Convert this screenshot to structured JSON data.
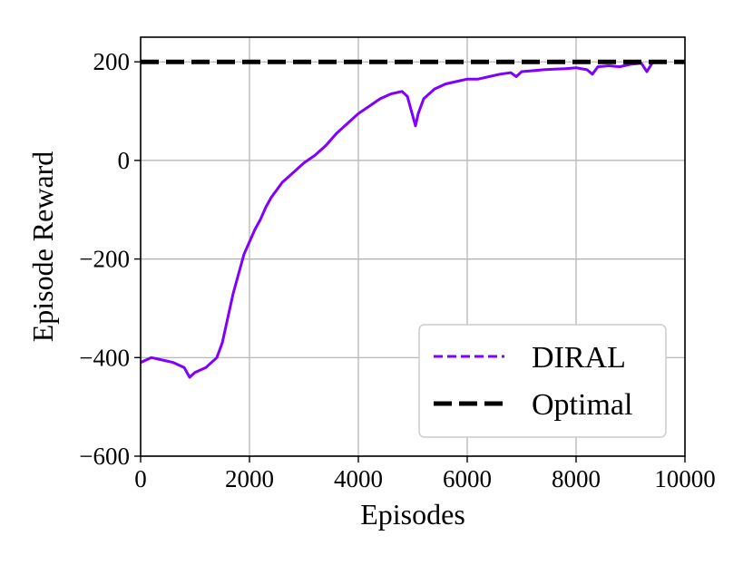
{
  "chart_data": {
    "type": "line",
    "xlabel": "Episodes",
    "ylabel": "Episode Reward",
    "xlim": [
      0,
      10000
    ],
    "ylim": [
      -600,
      250
    ],
    "x_ticks": [
      0,
      2000,
      4000,
      6000,
      8000,
      10000
    ],
    "y_ticks": [
      -600,
      -400,
      -200,
      0,
      200
    ],
    "x_tick_labels": [
      "0",
      "2000",
      "4000",
      "6000",
      "8000",
      "10000"
    ],
    "y_tick_labels": [
      "−600",
      "−400",
      "−200",
      "0",
      "200"
    ],
    "grid": true,
    "legend_position": "lower right",
    "series": [
      {
        "name": "DIRAL",
        "color": "#7f00ff",
        "style": "solid",
        "x": [
          0,
          200,
          400,
          600,
          800,
          900,
          1000,
          1200,
          1400,
          1500,
          1600,
          1700,
          1800,
          1900,
          2000,
          2100,
          2200,
          2300,
          2400,
          2500,
          2600,
          2800,
          3000,
          3200,
          3400,
          3600,
          3800,
          4000,
          4200,
          4400,
          4600,
          4800,
          4900,
          5000,
          5050,
          5100,
          5200,
          5400,
          5600,
          5800,
          6000,
          6200,
          6400,
          6600,
          6800,
          6900,
          7000,
          7200,
          7400,
          7600,
          7800,
          8000,
          8200,
          8300,
          8400,
          8600,
          8800,
          9000,
          9200,
          9300,
          9400,
          9600
        ],
        "y": [
          -410,
          -400,
          -405,
          -410,
          -420,
          -440,
          -430,
          -420,
          -400,
          -370,
          -320,
          -270,
          -230,
          -190,
          -165,
          -140,
          -120,
          -95,
          -75,
          -60,
          -45,
          -25,
          -5,
          10,
          30,
          55,
          75,
          95,
          110,
          125,
          135,
          140,
          130,
          90,
          70,
          95,
          125,
          145,
          155,
          160,
          165,
          165,
          170,
          175,
          178,
          170,
          180,
          182,
          184,
          185,
          186,
          188,
          184,
          175,
          190,
          192,
          190,
          195,
          197,
          180,
          198,
          200
        ]
      },
      {
        "name": "Optimal",
        "color": "#000000",
        "style": "dashed",
        "x": [
          0,
          10000
        ],
        "y": [
          200,
          200
        ]
      }
    ]
  }
}
